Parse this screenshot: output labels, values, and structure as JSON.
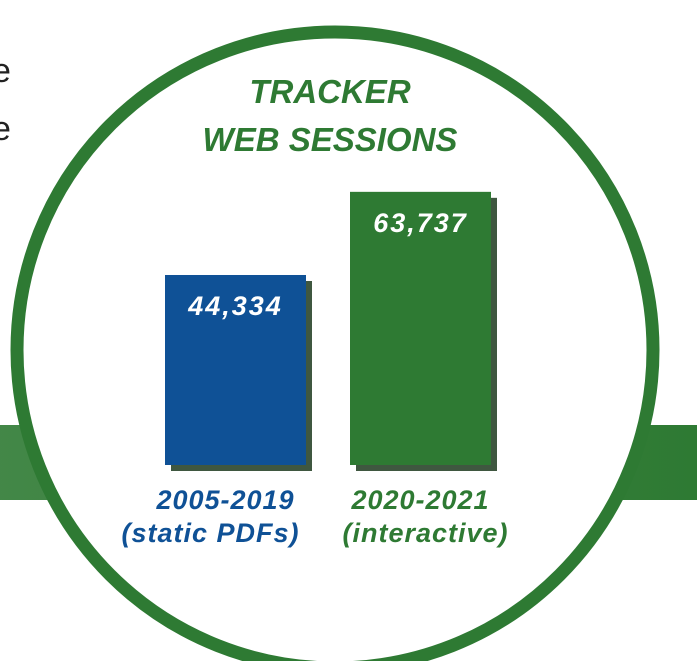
{
  "backdrop_text": [
    "e",
    "e"
  ],
  "chart_data": {
    "type": "bar",
    "title": [
      "TRACKER",
      "WEB SESSIONS"
    ],
    "categories": [
      "2005-2019",
      "2020-2021"
    ],
    "sublabels": [
      "(static PDFs)",
      "(interactive)"
    ],
    "values": [
      44334,
      63737
    ],
    "value_labels": [
      "44,334",
      "63,737"
    ],
    "colors": [
      "#0f5196",
      "#2e7a33"
    ],
    "ylim": [
      0,
      70000
    ]
  }
}
